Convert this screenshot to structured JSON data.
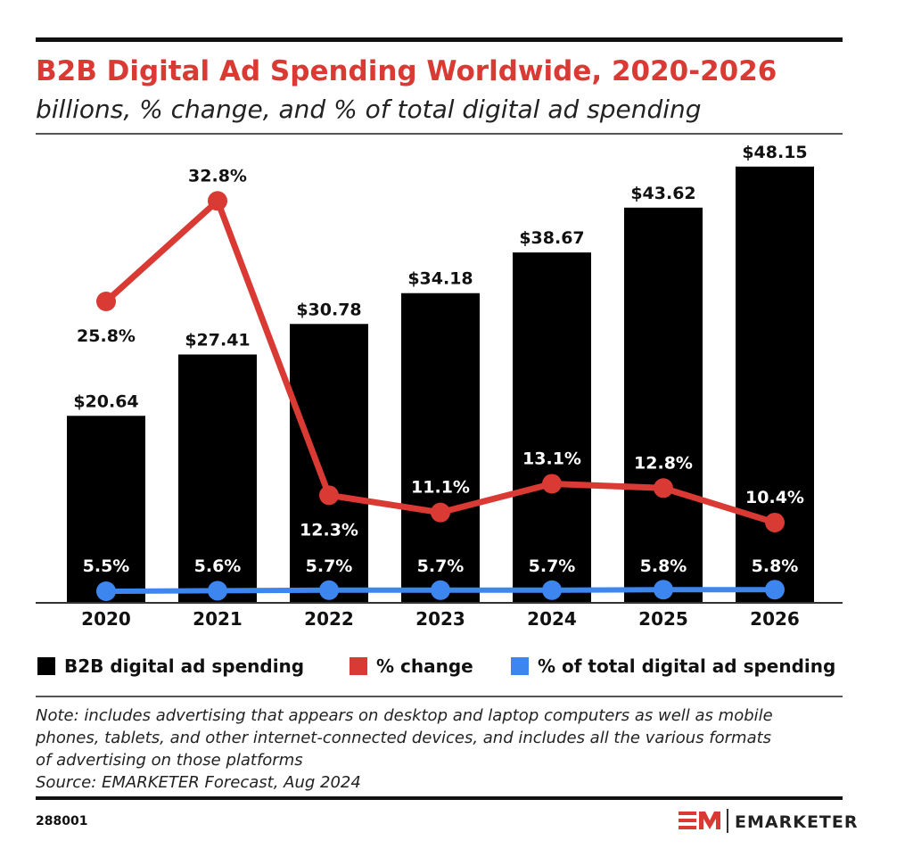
{
  "chart_data": {
    "type": "bar",
    "title": "B2B Digital Ad Spending Worldwide, 2020-2026",
    "subtitle": "billions, % change, and % of total digital ad spending",
    "categories": [
      "2020",
      "2021",
      "2022",
      "2023",
      "2024",
      "2025",
      "2026"
    ],
    "series": [
      {
        "name": "B2B digital ad spending",
        "type": "bar",
        "color": "#000000",
        "values": [
          20.64,
          27.41,
          30.78,
          34.18,
          38.67,
          43.62,
          48.15
        ],
        "labels": [
          "$20.64",
          "$27.41",
          "$30.78",
          "$34.18",
          "$38.67",
          "$43.62",
          "$48.15"
        ]
      },
      {
        "name": "% change",
        "type": "line",
        "color": "#d93a34",
        "values": [
          25.8,
          32.8,
          12.3,
          11.1,
          13.1,
          12.8,
          10.4
        ],
        "labels": [
          "25.8%",
          "32.8%",
          "12.3%",
          "11.1%",
          "13.1%",
          "12.8%",
          "10.4%"
        ]
      },
      {
        "name": "% of total digital ad spending",
        "type": "line",
        "color": "#3d86f0",
        "values": [
          5.5,
          5.6,
          5.7,
          5.7,
          5.7,
          5.8,
          5.8
        ],
        "labels": [
          "5.5%",
          "5.6%",
          "5.7%",
          "5.7%",
          "5.7%",
          "5.8%",
          "5.8%"
        ]
      }
    ],
    "legend": "bottom",
    "grid": false
  },
  "note": [
    "Note: includes advertising that appears on desktop and laptop computers as well as mobile",
    "phones, tablets, and other internet-connected devices, and includes all the various formats",
    "of advertising on those platforms",
    "Source: EMARKETER Forecast, Aug 2024"
  ],
  "chart_id": "288001",
  "brand": {
    "logo": "EM",
    "name": "EMARKETER",
    "color": "#d93a34"
  }
}
